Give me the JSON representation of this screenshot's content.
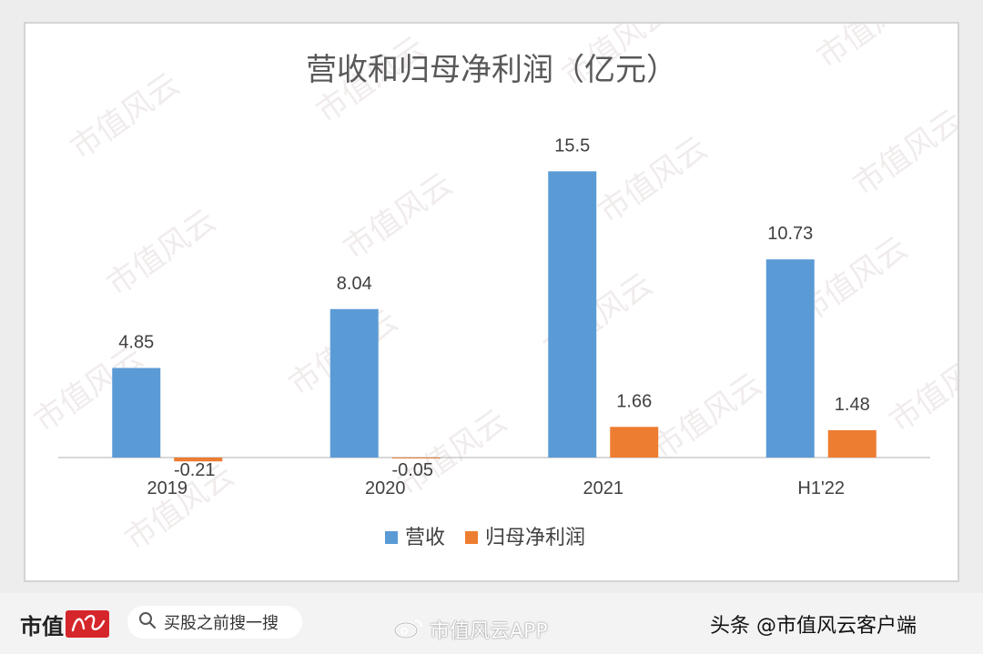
{
  "chart_data": {
    "type": "bar",
    "title": "营收和归母净利润（亿元）",
    "categories": [
      "2019",
      "2020",
      "2021",
      "H1'22"
    ],
    "series": [
      {
        "name": "营收",
        "values": [
          4.85,
          8.04,
          15.5,
          10.73
        ],
        "color": "#5b9bd5"
      },
      {
        "name": "归母净利润",
        "values": [
          -0.21,
          -0.05,
          1.66,
          1.48
        ],
        "color": "#ed7d31"
      }
    ],
    "data_labels": {
      "营收": [
        "4.85",
        "8.04",
        "15.5",
        "10.73"
      ],
      "归母净利润": [
        "-0.21",
        "-0.05",
        "1.66",
        "1.48"
      ]
    },
    "legend_position": "bottom",
    "grid": false,
    "watermark": "市值风云"
  },
  "footer": {
    "brand_text": "市值",
    "brand_mark_text": "风云",
    "search_placeholder": "买股之前搜一搜",
    "search_icon": "search-icon",
    "weibo_icon": "weibo-icon",
    "weibo_label": "市值风云APP",
    "toutiao_label": "头条 @市值风云客户端"
  },
  "colors": {
    "revenue": "#5b9bd5",
    "profit": "#ed7d31",
    "brand_red": "#d5262b"
  }
}
